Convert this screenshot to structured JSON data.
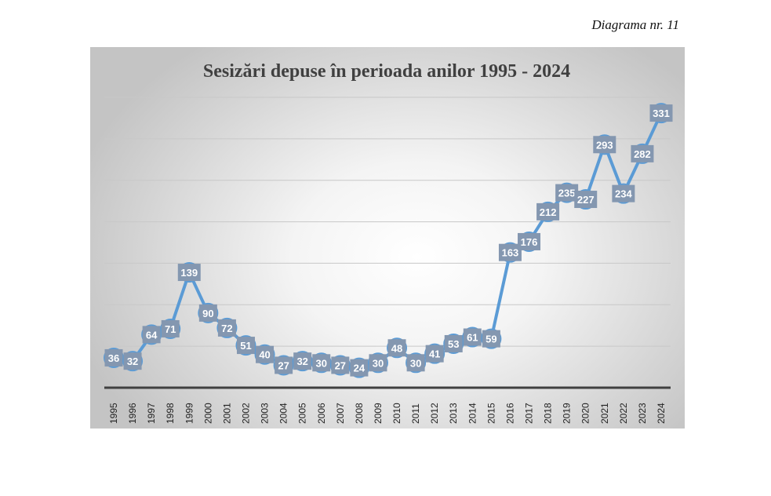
{
  "caption": "Diagrama nr. 11",
  "chart_data": {
    "type": "line",
    "title": "Sesizări depuse în perioada anilor 1995 - 2024",
    "categories": [
      "1995",
      "1996",
      "1997",
      "1998",
      "1999",
      "2000",
      "2001",
      "2002",
      "2003",
      "2004",
      "2005",
      "2006",
      "2007",
      "2008",
      "2009",
      "2010",
      "2011",
      "2012",
      "2013",
      "2014",
      "2015",
      "2016",
      "2017",
      "2018",
      "2019",
      "2020",
      "2021",
      "2022",
      "2023",
      "2024"
    ],
    "values": [
      36,
      32,
      64,
      71,
      139,
      90,
      72,
      51,
      40,
      27,
      32,
      30,
      27,
      24,
      30,
      48,
      30,
      41,
      53,
      61,
      59,
      163,
      176,
      212,
      235,
      227,
      293,
      234,
      282,
      331
    ],
    "ylim": [
      0,
      350
    ],
    "grid": true,
    "gridstep": 50,
    "xlabel": "",
    "ylabel": "",
    "line_color": "#5b9bd5",
    "label_color": "#8497b0"
  }
}
